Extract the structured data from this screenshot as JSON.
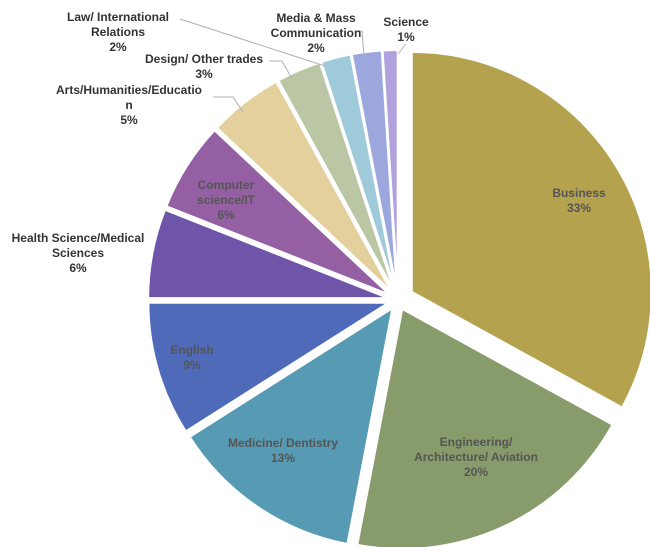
{
  "chart_data": {
    "type": "pie",
    "title": "",
    "slices": [
      {
        "label": [
          "Business"
        ],
        "value": 33,
        "pct": "33%",
        "color": "#b5a24f"
      },
      {
        "label": [
          "Engineering/",
          "Architecture/ Aviation"
        ],
        "value": 20,
        "pct": "20%",
        "color": "#889b6a"
      },
      {
        "label": [
          "Medicine/ Dentistry"
        ],
        "value": 13,
        "pct": "13%",
        "color": "#569bb3"
      },
      {
        "label": [
          "English"
        ],
        "value": 9,
        "pct": "9%",
        "color": "#4f6ab8"
      },
      {
        "label": [
          "Health Science/Medical",
          "Sciences"
        ],
        "value": 6,
        "pct": "6%",
        "color": "#6e55a9"
      },
      {
        "label": [
          "Computer",
          "science/IT"
        ],
        "value": 6,
        "pct": "6%",
        "color": "#9460a3"
      },
      {
        "label": [
          "Arts/Humanities/Educatio",
          "n"
        ],
        "value": 5,
        "pct": "5%",
        "color": "#e3d09c"
      },
      {
        "label": [
          "Design/ Other trades"
        ],
        "value": 3,
        "pct": "3%",
        "color": "#bac6a4"
      },
      {
        "label": [
          "Law/ International",
          "Relations"
        ],
        "value": 2,
        "pct": "2%",
        "color": "#9fcad9"
      },
      {
        "label": [
          "Media & Mass",
          "Communication"
        ],
        "value": 2,
        "pct": "2%",
        "color": "#9ca7dd"
      },
      {
        "label": [
          "Science"
        ],
        "value": 1,
        "pct": "1%",
        "color": "#b1a1dd"
      }
    ]
  }
}
